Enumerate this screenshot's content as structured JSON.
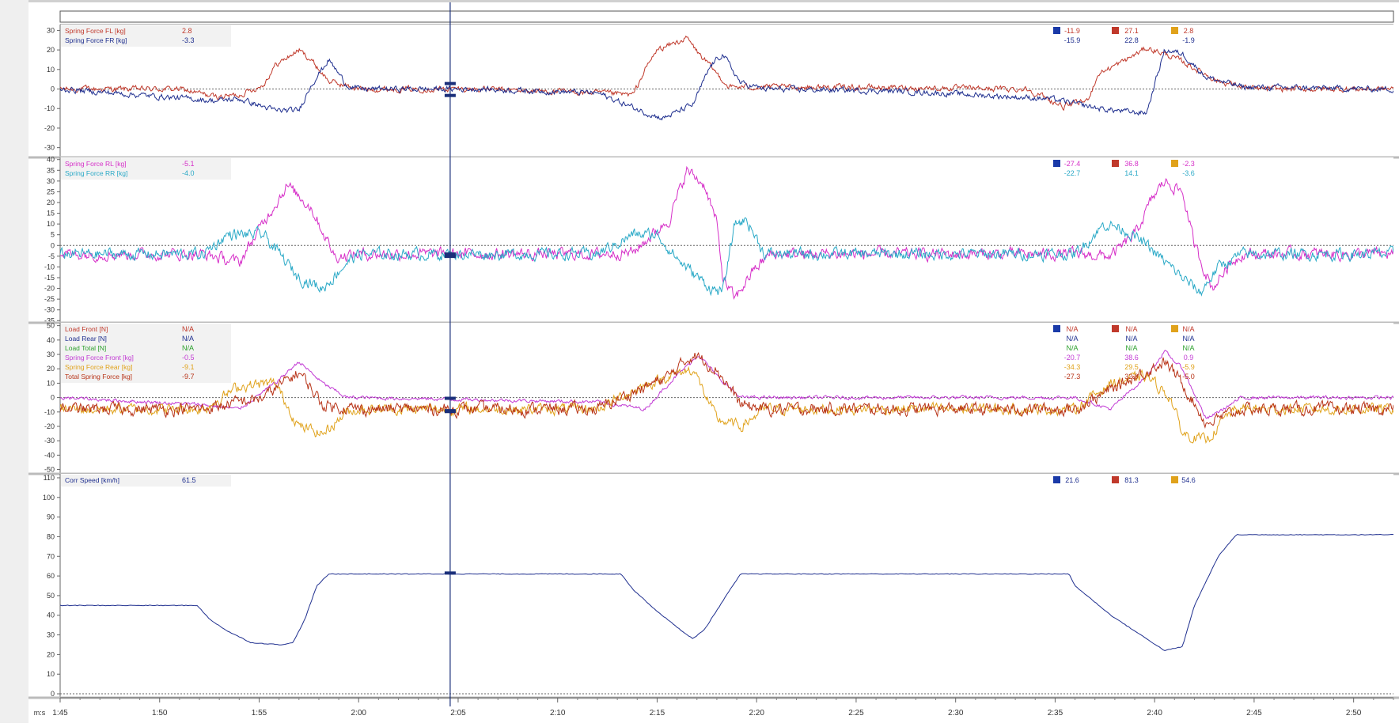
{
  "time_axis": {
    "unit_label": "m:s",
    "ticks": [
      "1:45",
      "1:50",
      "1:55",
      "2:00",
      "2:05",
      "2:10",
      "2:15",
      "2:20",
      "2:25",
      "2:30",
      "2:35",
      "2:40",
      "2:45",
      "2:50"
    ]
  },
  "cursor_time": "2:04.6",
  "chart_data": [
    {
      "type": "line",
      "id": "p1",
      "ylim": [
        -35,
        33
      ],
      "yticks": [
        30,
        20,
        10,
        0,
        -10,
        -20,
        -30
      ],
      "legend_placement": "top-left",
      "stats_placement": "top-right",
      "series": [
        {
          "name": "Spring Force FL [kg]",
          "color": "#c0392b",
          "cursor": "2.8",
          "min": "-11.9",
          "max": "27.1",
          "avg": "2.8",
          "kind": "noisy",
          "noise": 1.2,
          "points": [
            [
              1.75,
              0
            ],
            [
              1.85,
              0
            ],
            [
              1.88,
              -4
            ],
            [
              1.9,
              -3
            ],
            [
              1.92,
              2
            ],
            [
              1.93,
              12
            ],
            [
              1.95,
              20
            ],
            [
              1.96,
              15
            ],
            [
              1.975,
              4
            ],
            [
              2.0,
              0
            ],
            [
              2.1,
              0
            ],
            [
              2.2,
              -2
            ],
            [
              2.23,
              -3
            ],
            [
              2.24,
              10
            ],
            [
              2.25,
              20
            ],
            [
              2.275,
              26
            ],
            [
              2.285,
              18
            ],
            [
              2.3,
              8
            ],
            [
              2.31,
              1
            ],
            [
              2.4,
              1
            ],
            [
              2.56,
              0
            ],
            [
              2.59,
              -9
            ],
            [
              2.61,
              -6
            ],
            [
              2.62,
              8
            ],
            [
              2.64,
              14
            ],
            [
              2.66,
              21
            ],
            [
              2.675,
              18
            ],
            [
              2.69,
              14
            ],
            [
              2.72,
              4
            ],
            [
              2.75,
              0
            ],
            [
              2.85,
              0
            ]
          ]
        },
        {
          "name": "Spring Force FR [kg]",
          "color": "#1f2f8f",
          "cursor": "-3.3",
          "min": "-15.9",
          "max": "22.8",
          "avg": "-1.9",
          "kind": "noisy",
          "noise": 1.2,
          "points": [
            [
              1.75,
              0
            ],
            [
              1.88,
              -6
            ],
            [
              1.9,
              -5
            ],
            [
              1.93,
              -11
            ],
            [
              1.95,
              -11
            ],
            [
              1.96,
              2
            ],
            [
              1.975,
              15
            ],
            [
              1.99,
              2
            ],
            [
              2.0,
              0
            ],
            [
              2.1,
              0
            ],
            [
              2.2,
              -2
            ],
            [
              2.24,
              -12
            ],
            [
              2.255,
              -15
            ],
            [
              2.28,
              -8
            ],
            [
              2.295,
              12
            ],
            [
              2.305,
              18
            ],
            [
              2.32,
              3
            ],
            [
              2.34,
              0
            ],
            [
              2.45,
              -1
            ],
            [
              2.58,
              -5
            ],
            [
              2.62,
              -10
            ],
            [
              2.65,
              -12
            ],
            [
              2.66,
              -12
            ],
            [
              2.675,
              20
            ],
            [
              2.69,
              18
            ],
            [
              2.71,
              6
            ],
            [
              2.74,
              1
            ],
            [
              2.85,
              0
            ]
          ]
        }
      ]
    },
    {
      "type": "line",
      "id": "p2",
      "ylim": [
        -36,
        41
      ],
      "yticks": [
        40,
        35,
        30,
        25,
        20,
        15,
        10,
        5,
        0,
        -5,
        -10,
        -15,
        -20,
        -25,
        -30,
        -35
      ],
      "legend_placement": "top-left",
      "stats_placement": "top-right",
      "series": [
        {
          "name": "Spring Force RL [kg]",
          "color": "#d62fc8",
          "cursor": "-5.1",
          "min": "-27.4",
          "max": "36.8",
          "avg": "-2.3",
          "kind": "noisy",
          "noise": 2.2,
          "points": [
            [
              1.75,
              -4
            ],
            [
              1.87,
              -4
            ],
            [
              1.9,
              -8
            ],
            [
              1.925,
              15
            ],
            [
              1.94,
              28
            ],
            [
              1.96,
              18
            ],
            [
              1.98,
              -5
            ],
            [
              2.0,
              -4
            ],
            [
              2.2,
              -4
            ],
            [
              2.23,
              -3
            ],
            [
              2.26,
              12
            ],
            [
              2.275,
              35
            ],
            [
              2.29,
              28
            ],
            [
              2.3,
              10
            ],
            [
              2.305,
              -15
            ],
            [
              2.315,
              -25
            ],
            [
              2.33,
              -12
            ],
            [
              2.345,
              -4
            ],
            [
              2.6,
              -4
            ],
            [
              2.63,
              -5
            ],
            [
              2.65,
              5
            ],
            [
              2.665,
              22
            ],
            [
              2.675,
              30
            ],
            [
              2.69,
              25
            ],
            [
              2.7,
              0
            ],
            [
              2.715,
              -20
            ],
            [
              2.73,
              -8
            ],
            [
              2.74,
              -4
            ],
            [
              2.85,
              -4
            ]
          ]
        },
        {
          "name": "Spring Force RR [kg]",
          "color": "#2aa9c7",
          "cursor": "-4.0",
          "min": "-22.7",
          "max": "14.1",
          "avg": "-3.6",
          "kind": "noisy",
          "noise": 2.2,
          "points": [
            [
              1.75,
              -4
            ],
            [
              1.87,
              -4
            ],
            [
              1.89,
              5
            ],
            [
              1.92,
              5
            ],
            [
              1.95,
              -15
            ],
            [
              1.97,
              -20
            ],
            [
              1.99,
              -8
            ],
            [
              2.0,
              -4
            ],
            [
              2.2,
              -4
            ],
            [
              2.23,
              5
            ],
            [
              2.25,
              5
            ],
            [
              2.27,
              -8
            ],
            [
              2.295,
              -20
            ],
            [
              2.305,
              -22
            ],
            [
              2.315,
              10
            ],
            [
              2.325,
              12
            ],
            [
              2.34,
              -4
            ],
            [
              2.6,
              -4
            ],
            [
              2.625,
              10
            ],
            [
              2.64,
              8
            ],
            [
              2.66,
              0
            ],
            [
              2.69,
              -15
            ],
            [
              2.705,
              -22
            ],
            [
              2.72,
              -10
            ],
            [
              2.74,
              -4
            ],
            [
              2.85,
              -4
            ]
          ]
        }
      ]
    },
    {
      "type": "line",
      "id": "p3",
      "ylim": [
        -53,
        52
      ],
      "yticks": [
        50,
        40,
        30,
        20,
        10,
        0,
        -10,
        -20,
        -30,
        -40,
        -50
      ],
      "legend_placement": "top-left",
      "stats_placement": "top-right",
      "series": [
        {
          "name": "Load Front [N]",
          "color": "#c0392b",
          "cursor": "N/A",
          "min": "N/A",
          "max": "N/A",
          "avg": "N/A",
          "kind": "none",
          "points": []
        },
        {
          "name": "Load Rear [N]",
          "color": "#1f2f8f",
          "cursor": "N/A",
          "min": "N/A",
          "max": "N/A",
          "avg": "N/A",
          "kind": "none",
          "points": []
        },
        {
          "name": "Load Total [N]",
          "color": "#2ca02c",
          "cursor": "N/A",
          "min": "N/A",
          "max": "N/A",
          "avg": "N/A",
          "kind": "none",
          "points": []
        },
        {
          "name": "Spring Force Front [kg]",
          "color": "#c23bd4",
          "cursor": "-0.5",
          "min": "-20.7",
          "max": "38.6",
          "avg": "0.9",
          "kind": "noisy",
          "noise": 1.0,
          "points": [
            [
              1.75,
              0
            ],
            [
              1.87,
              -5
            ],
            [
              1.9,
              -8
            ],
            [
              1.93,
              10
            ],
            [
              1.95,
              25
            ],
            [
              1.97,
              10
            ],
            [
              1.99,
              0
            ],
            [
              2.0,
              0
            ],
            [
              2.2,
              -3
            ],
            [
              2.24,
              -8
            ],
            [
              2.26,
              10
            ],
            [
              2.285,
              30
            ],
            [
              2.3,
              15
            ],
            [
              2.32,
              0
            ],
            [
              2.6,
              0
            ],
            [
              2.63,
              -8
            ],
            [
              2.66,
              15
            ],
            [
              2.675,
              32
            ],
            [
              2.69,
              20
            ],
            [
              2.71,
              -15
            ],
            [
              2.73,
              -5
            ],
            [
              2.74,
              0
            ],
            [
              2.85,
              0
            ]
          ]
        },
        {
          "name": "Spring Force Rear [kg]",
          "color": "#e0a21b",
          "cursor": "-9.1",
          "min": "-34.3",
          "max": "29.5",
          "avg": "-5.9",
          "kind": "noisy",
          "noise": 3.0,
          "points": [
            [
              1.75,
              -8
            ],
            [
              1.87,
              -8
            ],
            [
              1.9,
              8
            ],
            [
              1.93,
              10
            ],
            [
              1.95,
              -20
            ],
            [
              1.97,
              -25
            ],
            [
              1.99,
              -10
            ],
            [
              2.0,
              -8
            ],
            [
              2.2,
              -8
            ],
            [
              2.23,
              5
            ],
            [
              2.26,
              15
            ],
            [
              2.28,
              20
            ],
            [
              2.3,
              -15
            ],
            [
              2.32,
              -20
            ],
            [
              2.34,
              -8
            ],
            [
              2.6,
              -8
            ],
            [
              2.63,
              10
            ],
            [
              2.66,
              15
            ],
            [
              2.68,
              0
            ],
            [
              2.69,
              -25
            ],
            [
              2.71,
              -30
            ],
            [
              2.73,
              -10
            ],
            [
              2.74,
              -8
            ],
            [
              2.85,
              -8
            ]
          ]
        },
        {
          "name": "Total Spring Force [kg]",
          "color": "#b83418",
          "cursor": "-9.7",
          "min": "-27.3",
          "max": "32.9",
          "avg": "-5.0",
          "kind": "noisy",
          "noise": 3.4,
          "points": [
            [
              1.75,
              -8
            ],
            [
              1.87,
              -8
            ],
            [
              1.92,
              0
            ],
            [
              1.95,
              18
            ],
            [
              1.97,
              -5
            ],
            [
              2.0,
              -8
            ],
            [
              2.2,
              -8
            ],
            [
              2.26,
              15
            ],
            [
              2.28,
              30
            ],
            [
              2.3,
              20
            ],
            [
              2.32,
              -5
            ],
            [
              2.34,
              -8
            ],
            [
              2.6,
              -8
            ],
            [
              2.64,
              10
            ],
            [
              2.675,
              25
            ],
            [
              2.69,
              10
            ],
            [
              2.71,
              -18
            ],
            [
              2.74,
              -8
            ],
            [
              2.85,
              -8
            ]
          ]
        }
      ]
    },
    {
      "type": "line",
      "id": "p4",
      "ylim": [
        -2,
        112
      ],
      "yticks": [
        110,
        100,
        90,
        80,
        70,
        60,
        50,
        40,
        30,
        20,
        10,
        0
      ],
      "legend_placement": "top-left",
      "stats_placement": "top-right",
      "series": [
        {
          "name": "Corr Speed [km/h]",
          "color": "#1f2f8f",
          "cursor": "61.5",
          "min": "21.6",
          "max": "81.3",
          "avg": "54.6",
          "kind": "smooth",
          "noise": 0.35,
          "points": [
            [
              1.75,
              45
            ],
            [
              1.865,
              45
            ],
            [
              1.875,
              38
            ],
            [
              1.89,
              32
            ],
            [
              1.91,
              26
            ],
            [
              1.935,
              25
            ],
            [
              1.945,
              26
            ],
            [
              1.955,
              38
            ],
            [
              1.965,
              55
            ],
            [
              1.975,
              61
            ],
            [
              2.22,
              61
            ],
            [
              2.23,
              53
            ],
            [
              2.25,
              42
            ],
            [
              2.275,
              30
            ],
            [
              2.28,
              28
            ],
            [
              2.29,
              33
            ],
            [
              2.31,
              52
            ],
            [
              2.32,
              61
            ],
            [
              2.595,
              61
            ],
            [
              2.6,
              55
            ],
            [
              2.63,
              40
            ],
            [
              2.66,
              28
            ],
            [
              2.675,
              22
            ],
            [
              2.69,
              24
            ],
            [
              2.7,
              45
            ],
            [
              2.72,
              70
            ],
            [
              2.735,
              81
            ],
            [
              2.85,
              81
            ]
          ]
        }
      ]
    }
  ]
}
